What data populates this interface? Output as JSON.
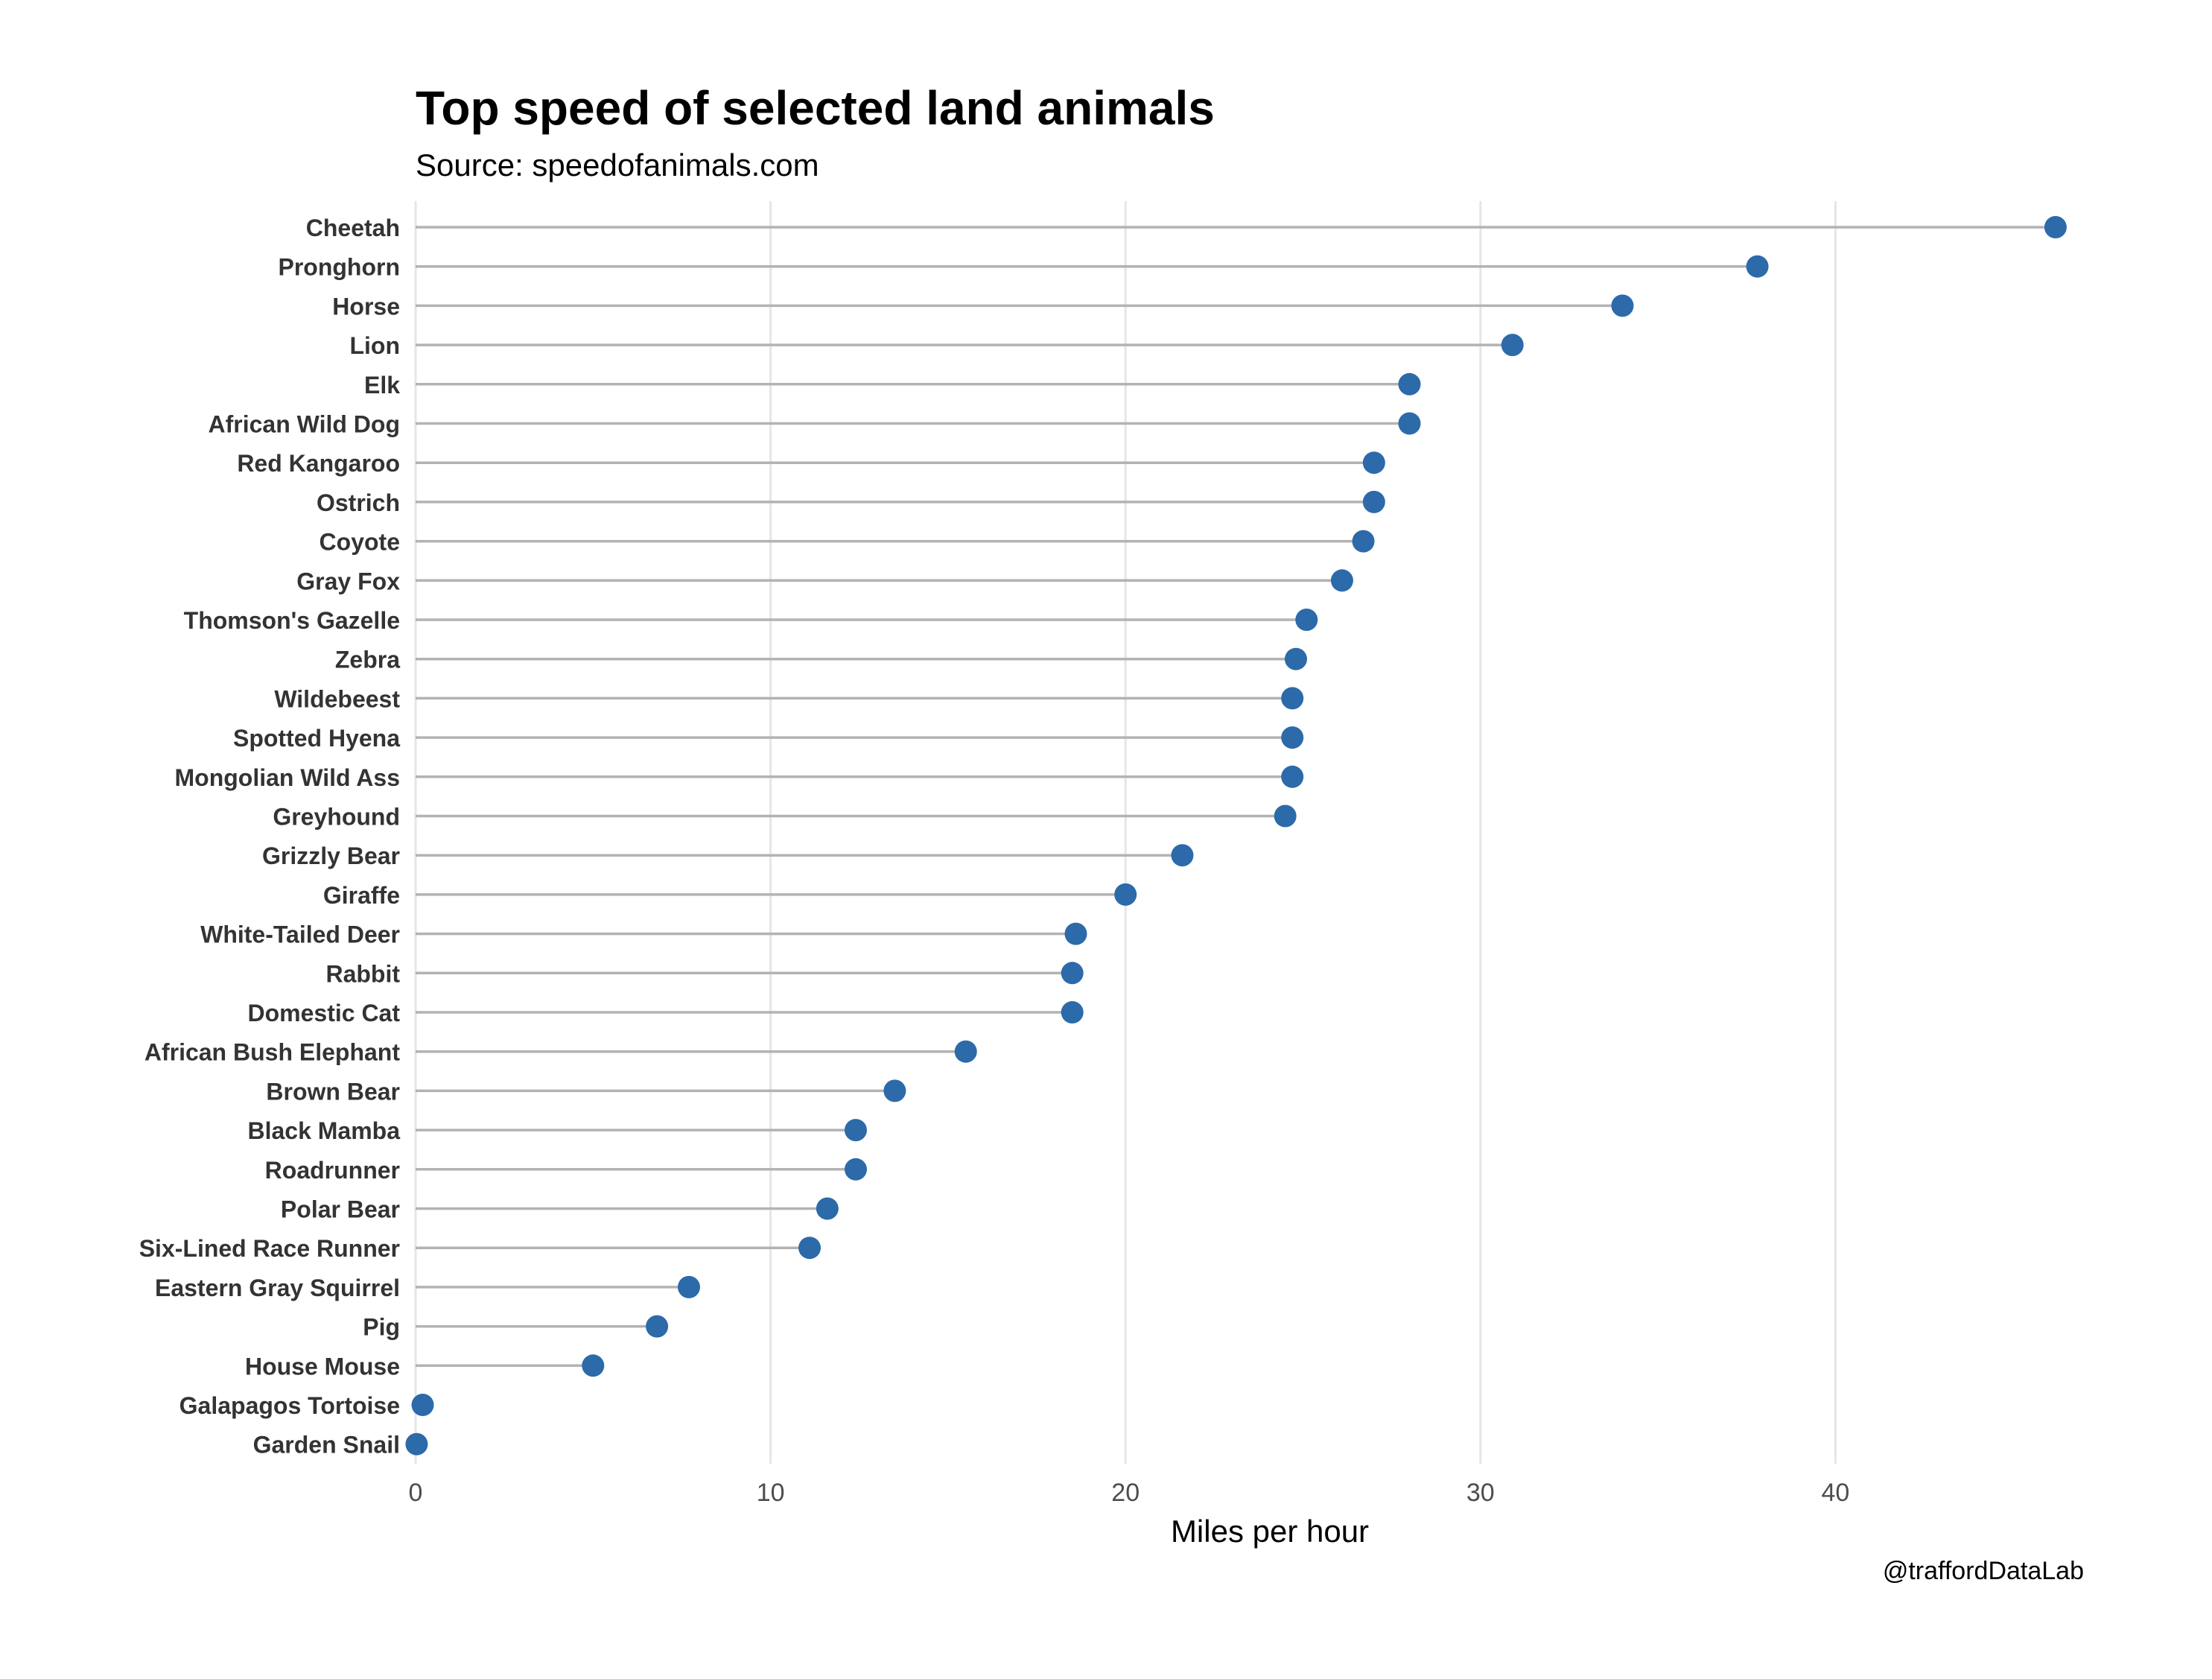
{
  "chart_data": {
    "type": "lollipop",
    "title": "Top speed of selected land animals",
    "subtitle": "Source: speedofanimals.com",
    "caption": "@traffordDataLab",
    "xlabel": "Miles per hour",
    "ylabel": "",
    "xlim": [
      0,
      48.3
    ],
    "xticks": [
      0,
      10,
      20,
      30,
      40
    ],
    "grid": "vertical-major",
    "colors": {
      "point": "#2c6aa9",
      "segment": "#b3b3b3",
      "grid": "#e6e6e6",
      "label": "#333333"
    },
    "categories": [
      "Cheetah",
      "Pronghorn",
      "Horse",
      "Lion",
      "Elk",
      "African Wild Dog",
      "Red Kangaroo",
      "Ostrich",
      "Coyote",
      "Gray Fox",
      "Thomson's Gazelle",
      "Zebra",
      "Wildebeest",
      "Spotted Hyena",
      "Mongolian Wild Ass",
      "Greyhound",
      "Grizzly Bear",
      "Giraffe",
      "White-Tailed Deer ",
      "Rabbit",
      "Domestic Cat",
      "African Bush Elephant",
      "Brown Bear",
      "Black Mamba",
      "Roadrunner",
      "Polar Bear",
      "Six-Lined Race Runner ",
      "Eastern Gray Squirrel",
      "Pig",
      "House Mouse",
      "Galapagos Tortoise",
      "Garden Snail"
    ],
    "values": [
      46.2,
      37.8,
      34.0,
      30.9,
      28.0,
      28.0,
      27.0,
      27.0,
      26.7,
      26.1,
      25.1,
      24.8,
      24.7,
      24.7,
      24.7,
      24.5,
      21.6,
      20.0,
      18.6,
      18.5,
      18.5,
      15.5,
      13.5,
      12.4,
      12.4,
      11.6,
      11.1,
      7.7,
      6.8,
      5.0,
      0.2,
      0.03
    ]
  }
}
